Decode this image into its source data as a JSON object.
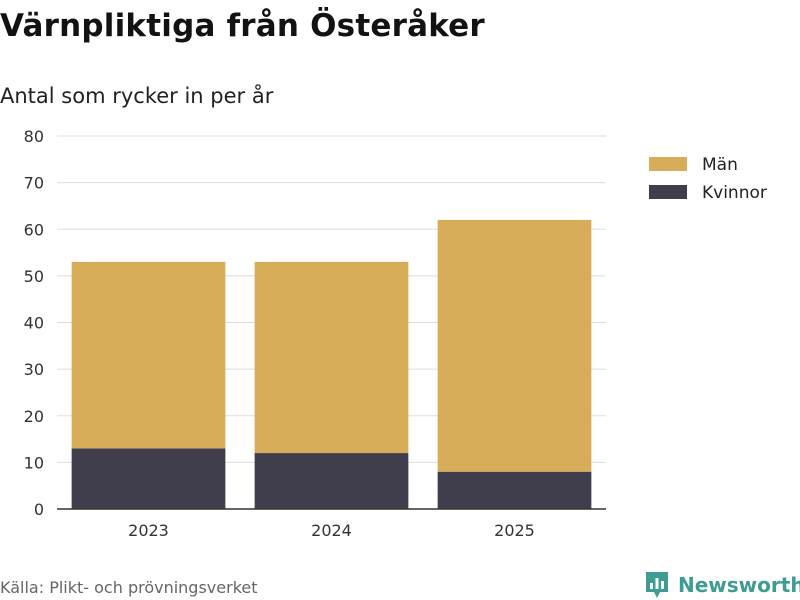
{
  "chart_data": {
    "type": "bar",
    "stacked": true,
    "title": "Värnpliktiga från Österåker",
    "subtitle": "Antal som rycker in per år",
    "categories": [
      "2023",
      "2024",
      "2025"
    ],
    "series": [
      {
        "name": "Kvinnor",
        "values": [
          13,
          12,
          8
        ],
        "color": "#403e4c"
      },
      {
        "name": "Män",
        "values": [
          40,
          41,
          54
        ],
        "color": "#d8ad5a"
      }
    ],
    "legend_order": [
      "Män",
      "Kvinnor"
    ],
    "ylim": [
      0,
      80
    ],
    "yticks": [
      "0",
      "10",
      "20",
      "30",
      "40",
      "50",
      "60",
      "70",
      "80"
    ],
    "ytick_values": [
      0,
      10,
      20,
      30,
      40,
      50,
      60,
      70,
      80
    ],
    "grid": true,
    "legend_position": "top-right"
  },
  "source": "Källa: Plikt- och prövningsverket",
  "brand": {
    "name": "Newsworthy",
    "icon": "chart-logo-icon",
    "color": "#3e9c92"
  }
}
